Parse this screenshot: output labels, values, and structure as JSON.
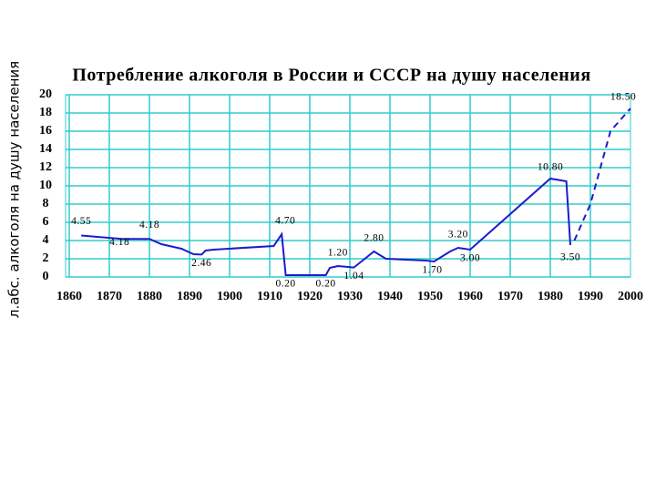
{
  "chart_data": {
    "type": "line",
    "title": "Потребление алкоголя в России и СССР на душу населения",
    "y_label": "л.абс. алкоголя на душу населения",
    "xlim": [
      1860,
      2000
    ],
    "xticks": [
      1860,
      1870,
      1880,
      1890,
      1900,
      1910,
      1920,
      1930,
      1940,
      1950,
      1960,
      1970,
      1980,
      1990,
      2000
    ],
    "ylim": [
      0,
      20
    ],
    "yticks": [
      0,
      2,
      4,
      6,
      8,
      10,
      12,
      14,
      16,
      18,
      20
    ],
    "grid": true,
    "grid_color": "#33cccc",
    "series": [
      {
        "style": "solid",
        "color": "#1c1ccc",
        "x": [
          1863,
          1873,
          1880,
          1883,
          1888,
          1891,
          1893,
          1894,
          1896,
          1911,
          1913,
          1914,
          1924,
          1925,
          1927,
          1931,
          1936,
          1939,
          1949,
          1951,
          1955,
          1957,
          1960,
          1980,
          1984,
          1985
        ],
        "values": [
          4.55,
          4.18,
          4.18,
          3.6,
          3.1,
          2.5,
          2.46,
          2.9,
          3.0,
          3.4,
          4.7,
          0.2,
          0.2,
          1.0,
          1.2,
          1.04,
          2.8,
          2.0,
          1.8,
          1.7,
          2.8,
          3.2,
          3.0,
          10.8,
          10.5,
          3.5
        ],
        "value_labels": [
          "4.55",
          "4.18",
          "4.18",
          null,
          null,
          null,
          "2.46",
          null,
          null,
          null,
          "4.70",
          "0.20",
          "0.20",
          null,
          "1.20",
          "1.04",
          "2.80",
          null,
          null,
          "1.70",
          null,
          "3.20",
          "3.00",
          "10.80",
          null,
          "3.50"
        ]
      },
      {
        "style": "dashed",
        "color": "#1c1ccc",
        "x": [
          1986,
          1990,
          1995,
          2000
        ],
        "values": [
          4.0,
          8.0,
          16.0,
          18.5
        ],
        "value_labels": [
          null,
          null,
          null,
          "18.50"
        ]
      }
    ]
  }
}
